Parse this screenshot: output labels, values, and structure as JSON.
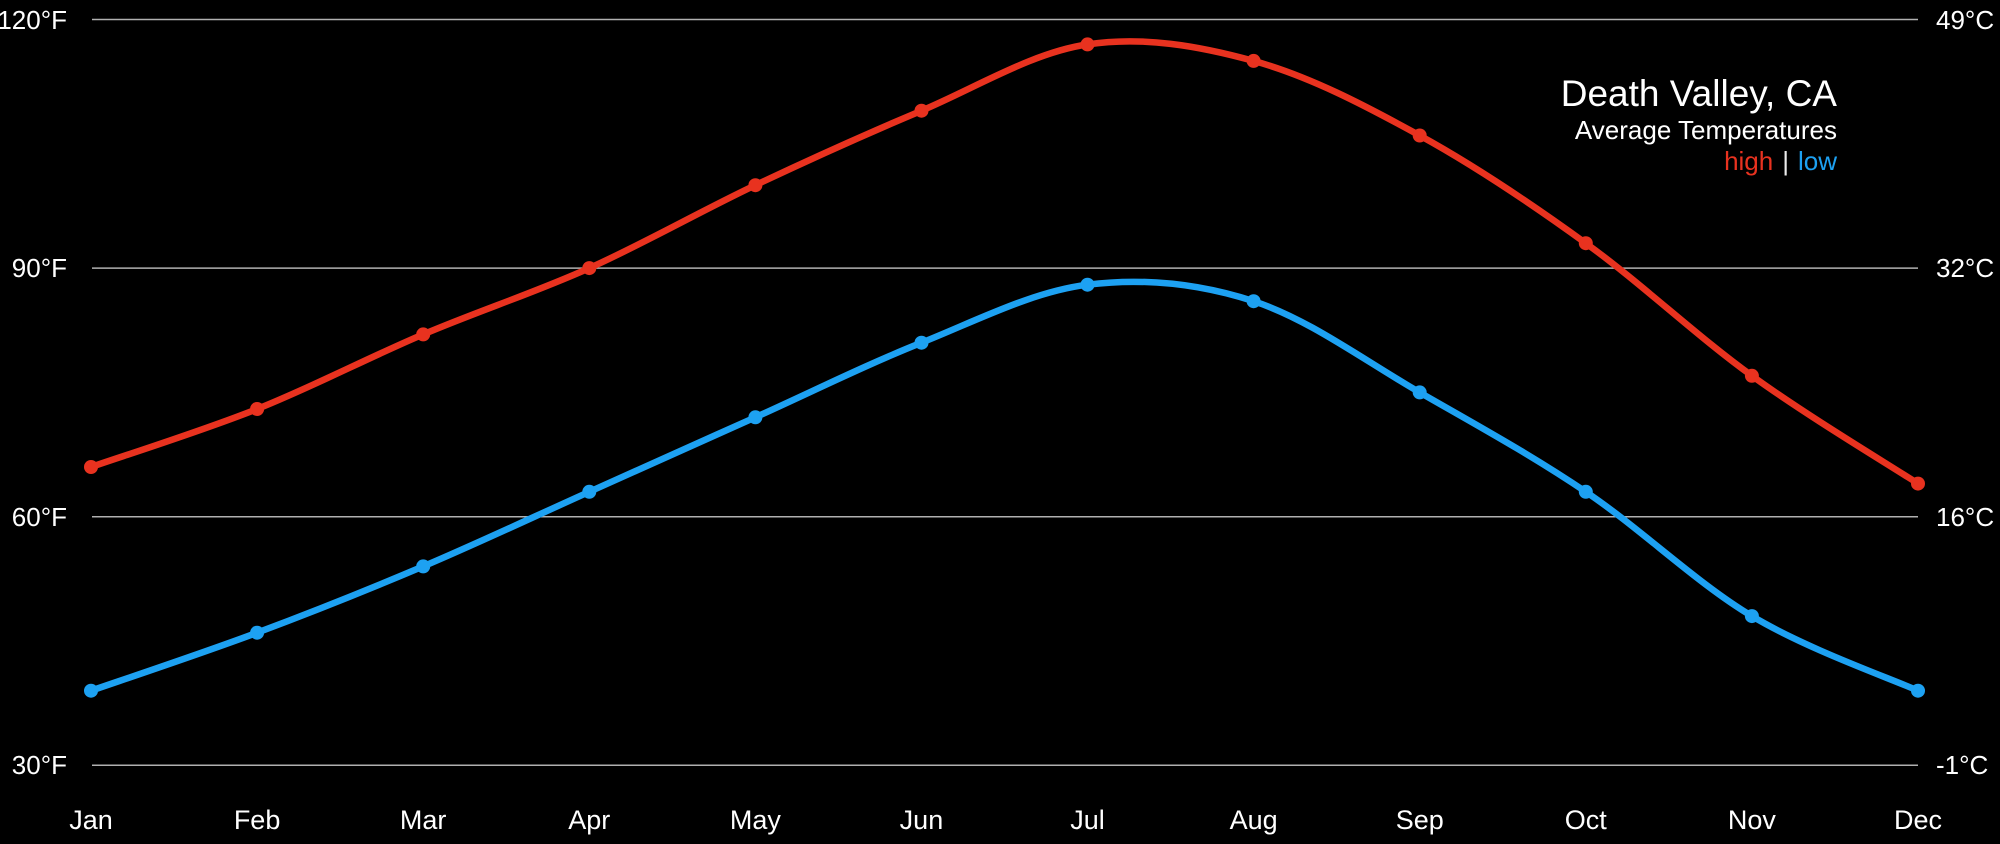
{
  "title": {
    "location": "Death Valley, CA",
    "subtitle": "Average Temperatures",
    "legend": {
      "high": "high",
      "separator": "|",
      "low": "low"
    }
  },
  "axes": {
    "left_ticks": [
      "120°F",
      "90°F",
      "60°F",
      "30°F"
    ],
    "right_ticks": [
      "49°C",
      "32°C",
      "16°C",
      "-1°C"
    ],
    "months": [
      "Jan",
      "Feb",
      "Mar",
      "Apr",
      "May",
      "Jun",
      "Jul",
      "Aug",
      "Sep",
      "Oct",
      "Nov",
      "Dec"
    ]
  },
  "colors": {
    "background": "#000000",
    "text": "#ffffff",
    "grid": "#b0b0b0",
    "high": "#e8321f",
    "low": "#1da1f2"
  },
  "chart_data": {
    "type": "line",
    "title": "Death Valley, CA",
    "subtitle": "Average Temperatures",
    "x": [
      "Jan",
      "Feb",
      "Mar",
      "Apr",
      "May",
      "Jun",
      "Jul",
      "Aug",
      "Sep",
      "Oct",
      "Nov",
      "Dec"
    ],
    "series": [
      {
        "name": "high",
        "unit": "°F",
        "color": "#e8321f",
        "values": [
          66,
          73,
          82,
          90,
          100,
          109,
          117,
          115,
          106,
          93,
          77,
          64
        ]
      },
      {
        "name": "low",
        "unit": "°F",
        "color": "#1da1f2",
        "values": [
          39,
          46,
          54,
          63,
          72,
          81,
          88,
          86,
          75,
          63,
          48,
          39
        ]
      }
    ],
    "y_axis_left": {
      "unit": "°F",
      "ticks": [
        120,
        90,
        60,
        30
      ]
    },
    "y_axis_right": {
      "unit": "°C",
      "ticks": [
        49,
        32,
        16,
        -1
      ]
    },
    "grid": "horizontal",
    "legend_position": "top-right",
    "markers": "filled circles at each month"
  }
}
